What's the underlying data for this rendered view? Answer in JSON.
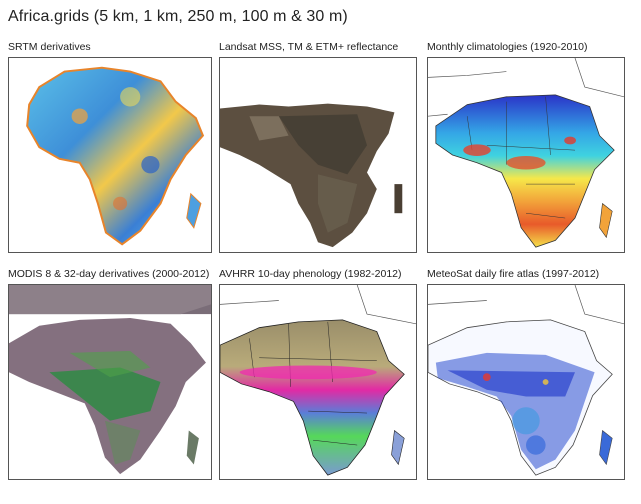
{
  "page": {
    "title": "Africa.grids (5 km, 1 km, 250 m, 100 m & 30 m)"
  },
  "panels": [
    {
      "caption": "SRTM derivatives"
    },
    {
      "caption": "Landsat MSS, TM & ETM+ reflectance"
    },
    {
      "caption": "Monthly climatologies (1920-2010)"
    },
    {
      "caption": "MODIS 8 & 32-day derivatives (2000-2012)"
    },
    {
      "caption": "AVHRR 10-day phenology (1982-2012)"
    },
    {
      "caption": "MeteoSat daily fire atlas (1997-2012)"
    }
  ]
}
